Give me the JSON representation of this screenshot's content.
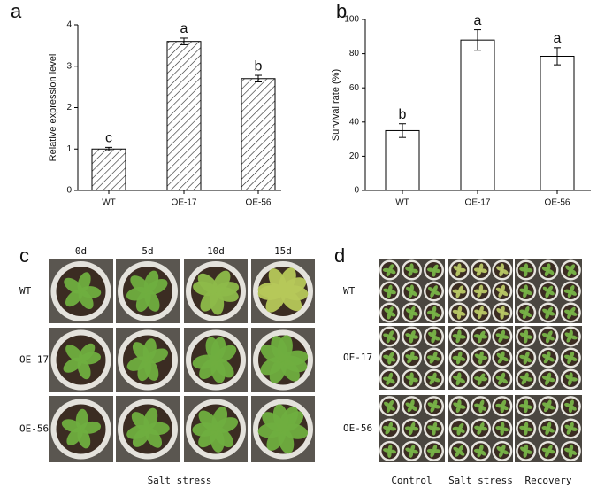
{
  "chart_data": [
    {
      "type": "bar",
      "panel_label": "a",
      "ylabel": "Relative expression level",
      "categories": [
        "WT",
        "OE-17",
        "OE-56"
      ],
      "values": [
        1.0,
        3.6,
        2.7
      ],
      "errors": [
        0.04,
        0.08,
        0.08
      ],
      "annotations": [
        "c",
        "a",
        "b"
      ],
      "color": "#ffffff",
      "hatch": true,
      "ylim": [
        0,
        4
      ],
      "yticks": [
        0,
        1,
        2,
        3,
        4
      ]
    },
    {
      "type": "bar",
      "panel_label": "b",
      "ylabel": "Survival rate (%)",
      "categories": [
        "WT",
        "OE-17",
        "OE-56"
      ],
      "values": [
        35,
        88,
        78.5
      ],
      "errors": [
        4,
        6,
        5
      ],
      "annotations": [
        "b",
        "a",
        "a"
      ],
      "color": "#ffffff",
      "hatch": false,
      "ylim": [
        0,
        100
      ],
      "yticks": [
        0,
        20,
        40,
        60,
        80,
        100
      ]
    }
  ],
  "photo_panels": {
    "c": {
      "panel_label": "c",
      "columns": [
        "0d",
        "5d",
        "10d",
        "15d"
      ],
      "rows": [
        "WT",
        "OE-17",
        "OE-56"
      ],
      "caption": "Salt stress"
    },
    "d": {
      "panel_label": "d",
      "columns": [
        "Control",
        "Salt stress",
        "Recovery"
      ],
      "rows": [
        "WT",
        "OE-17",
        "OE-56"
      ]
    }
  }
}
